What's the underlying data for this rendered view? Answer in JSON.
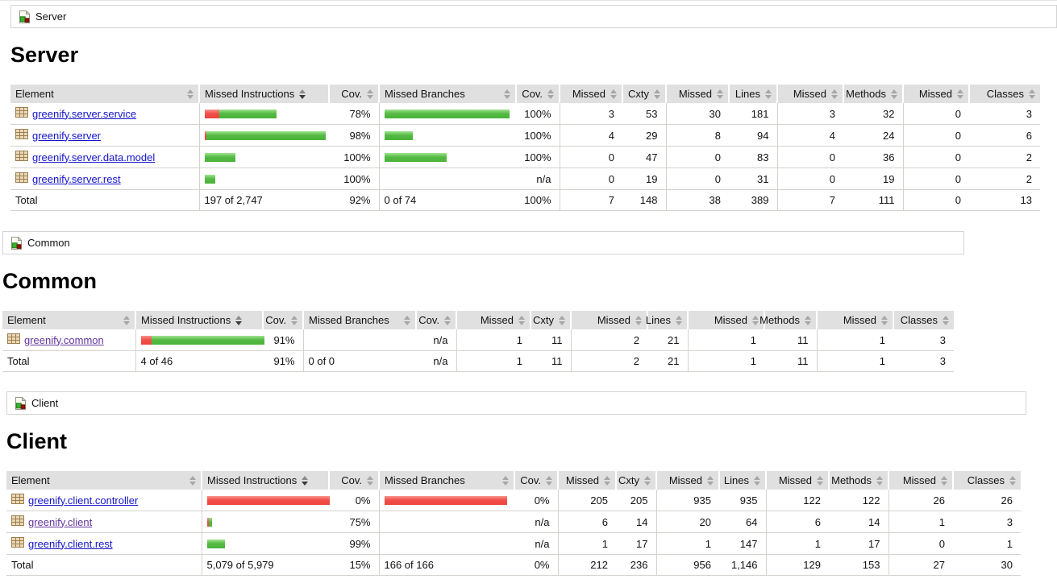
{
  "colors": {
    "link": "#1414cc",
    "link_visited": "#63359e",
    "header_bg": "#e0e0e0",
    "row_border": "#d6d3ce",
    "bar_green": "#4ab139",
    "bar_red": "#ee453d",
    "breadcrumb_border": "#d4d4d4"
  },
  "icons": {
    "report": "report-icon",
    "package": "package-icon",
    "sort": "sort-icon"
  },
  "columns": [
    {
      "label": "Element",
      "align": "between"
    },
    {
      "label": "Missed Instructions",
      "align": "left"
    },
    {
      "label": "Cov.",
      "align": "right"
    },
    {
      "label": "Missed Branches",
      "align": "between"
    },
    {
      "label": "Cov.",
      "align": "right"
    },
    {
      "label": "Missed",
      "align": "right"
    },
    {
      "label": "Cxty",
      "align": "right"
    },
    {
      "label": "Missed",
      "align": "right"
    },
    {
      "label": "Lines",
      "align": "right"
    },
    {
      "label": "Missed",
      "align": "right"
    },
    {
      "label": "Methods",
      "align": "right"
    },
    {
      "label": "Missed",
      "align": "right"
    },
    {
      "label": "Classes",
      "align": "right"
    }
  ],
  "sort": {
    "active_column_index": 1,
    "direction": "desc"
  },
  "sections": [
    {
      "id": "server",
      "breadcrumb": "Server",
      "title": "Server",
      "rows": [
        {
          "name": "greenify.server.service",
          "visited": false,
          "instr_bar": {
            "red": 18,
            "green": 71
          },
          "instr_cov": "78%",
          "branch_bar": {
            "red": 0,
            "green": 155
          },
          "branch_cov": "100%",
          "cells": [
            "3",
            "53",
            "30",
            "181",
            "3",
            "32",
            "0",
            "3"
          ]
        },
        {
          "name": "greenify.server",
          "visited": false,
          "instr_bar": {
            "red": 2,
            "green": 148
          },
          "instr_cov": "98%",
          "branch_bar": {
            "red": 0,
            "green": 35
          },
          "branch_cov": "100%",
          "cells": [
            "4",
            "29",
            "8",
            "94",
            "4",
            "24",
            "0",
            "6"
          ]
        },
        {
          "name": "greenify.server.data.model",
          "visited": false,
          "instr_bar": {
            "red": 0,
            "green": 38
          },
          "instr_cov": "100%",
          "branch_bar": {
            "red": 0,
            "green": 77
          },
          "branch_cov": "100%",
          "cells": [
            "0",
            "47",
            "0",
            "83",
            "0",
            "36",
            "0",
            "2"
          ]
        },
        {
          "name": "greenify.server.rest",
          "visited": false,
          "instr_bar": {
            "red": 0,
            "green": 13
          },
          "instr_cov": "100%",
          "branch_bar": {
            "red": 0,
            "green": 0
          },
          "branch_cov": "n/a",
          "cells": [
            "0",
            "19",
            "0",
            "31",
            "0",
            "19",
            "0",
            "2"
          ]
        }
      ],
      "total": {
        "label": "Total",
        "instr_text": "197 of 2,747",
        "instr_cov": "92%",
        "branch_text": "0 of 74",
        "branch_cov": "100%",
        "cells": [
          "7",
          "148",
          "38",
          "389",
          "7",
          "111",
          "0",
          "13"
        ]
      }
    },
    {
      "id": "common",
      "breadcrumb": "Common",
      "title": "Common",
      "rows": [
        {
          "name": "greenify.common",
          "visited": true,
          "instr_bar": {
            "red": 13,
            "green": 140
          },
          "instr_cov": "91%",
          "branch_bar": {
            "red": 0,
            "green": 0
          },
          "branch_cov": "n/a",
          "cells": [
            "1",
            "11",
            "2",
            "21",
            "1",
            "11",
            "1",
            "3"
          ]
        }
      ],
      "total": {
        "label": "Total",
        "instr_text": "4 of 46",
        "instr_cov": "91%",
        "branch_text": "0 of 0",
        "branch_cov": "n/a",
        "cells": [
          "1",
          "11",
          "2",
          "21",
          "1",
          "11",
          "1",
          "3"
        ]
      }
    },
    {
      "id": "client",
      "breadcrumb": "Client",
      "title": "Client",
      "rows": [
        {
          "name": "greenify.client.controller",
          "visited": false,
          "instr_bar": {
            "red": 152,
            "green": 0
          },
          "instr_cov": "0%",
          "branch_bar": {
            "red": 152,
            "green": 0
          },
          "branch_cov": "0%",
          "cells": [
            "205",
            "205",
            "935",
            "935",
            "122",
            "122",
            "26",
            "26"
          ]
        },
        {
          "name": "greenify.client",
          "visited": true,
          "instr_bar": {
            "red": 2,
            "green": 4
          },
          "instr_cov": "75%",
          "branch_bar": {
            "red": 0,
            "green": 0
          },
          "branch_cov": "n/a",
          "cells": [
            "6",
            "14",
            "20",
            "64",
            "6",
            "14",
            "1",
            "3"
          ]
        },
        {
          "name": "greenify.client.rest",
          "visited": false,
          "instr_bar": {
            "red": 0,
            "green": 22
          },
          "instr_cov": "99%",
          "branch_bar": {
            "red": 0,
            "green": 0
          },
          "branch_cov": "n/a",
          "cells": [
            "1",
            "17",
            "1",
            "147",
            "1",
            "17",
            "0",
            "1"
          ]
        }
      ],
      "total": {
        "label": "Total",
        "instr_text": "5,079 of 5,979",
        "instr_cov": "15%",
        "branch_text": "166 of 166",
        "branch_cov": "0%",
        "cells": [
          "212",
          "236",
          "956",
          "1,146",
          "129",
          "153",
          "27",
          "30"
        ]
      }
    }
  ]
}
